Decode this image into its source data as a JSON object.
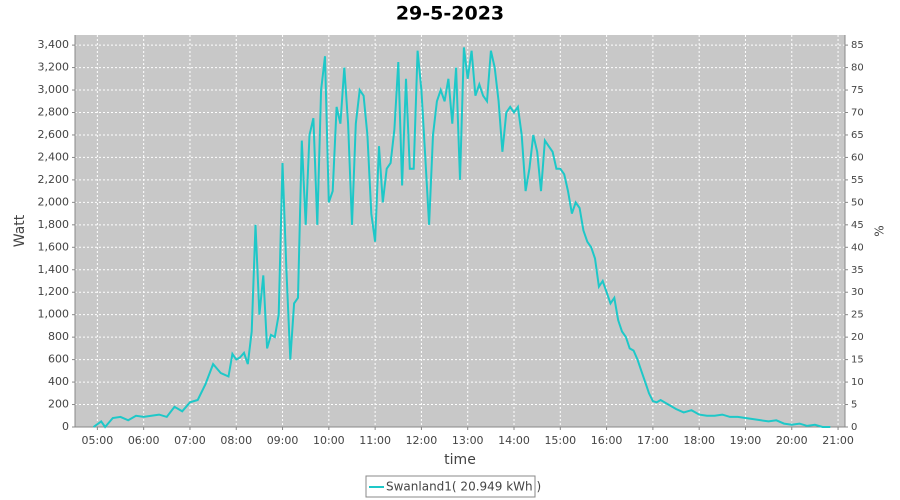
{
  "chart_data": {
    "type": "line",
    "title": "29-5-2023",
    "xlabel": "time",
    "ylabel": "Watt",
    "y2label": "%",
    "x": [
      "04:55",
      "05:05",
      "05:10",
      "05:20",
      "05:30",
      "05:40",
      "05:50",
      "06:00",
      "06:10",
      "06:20",
      "06:30",
      "06:40",
      "06:50",
      "07:00",
      "07:10",
      "07:20",
      "07:30",
      "07:40",
      "07:50",
      "07:55",
      "08:00",
      "08:05",
      "08:10",
      "08:15",
      "08:20",
      "08:25",
      "08:30",
      "08:35",
      "08:40",
      "08:45",
      "08:50",
      "08:55",
      "09:00",
      "09:05",
      "09:10",
      "09:15",
      "09:20",
      "09:25",
      "09:30",
      "09:35",
      "09:40",
      "09:45",
      "09:50",
      "09:55",
      "10:00",
      "10:05",
      "10:10",
      "10:15",
      "10:20",
      "10:25",
      "10:30",
      "10:35",
      "10:40",
      "10:45",
      "10:50",
      "10:55",
      "11:00",
      "11:05",
      "11:10",
      "11:15",
      "11:20",
      "11:25",
      "11:30",
      "11:35",
      "11:40",
      "11:45",
      "11:50",
      "11:55",
      "12:00",
      "12:05",
      "12:10",
      "12:15",
      "12:20",
      "12:25",
      "12:30",
      "12:35",
      "12:40",
      "12:45",
      "12:50",
      "12:55",
      "13:00",
      "13:05",
      "13:10",
      "13:15",
      "13:20",
      "13:25",
      "13:30",
      "13:35",
      "13:40",
      "13:45",
      "13:50",
      "13:55",
      "14:00",
      "14:05",
      "14:10",
      "14:15",
      "14:20",
      "14:25",
      "14:30",
      "14:35",
      "14:40",
      "14:45",
      "14:50",
      "14:55",
      "15:00",
      "15:05",
      "15:10",
      "15:15",
      "15:20",
      "15:25",
      "15:30",
      "15:35",
      "15:40",
      "15:45",
      "15:50",
      "15:55",
      "16:00",
      "16:05",
      "16:10",
      "16:15",
      "16:20",
      "16:25",
      "16:30",
      "16:35",
      "16:40",
      "16:45",
      "16:50",
      "16:55",
      "17:00",
      "17:05",
      "17:10",
      "17:20",
      "17:30",
      "17:40",
      "17:50",
      "18:00",
      "18:10",
      "18:20",
      "18:30",
      "18:40",
      "18:50",
      "19:00",
      "19:10",
      "19:20",
      "19:30",
      "19:40",
      "19:50",
      "20:00",
      "20:10",
      "20:20",
      "20:30",
      "20:40",
      "20:50"
    ],
    "series": [
      {
        "name": "Swanland1( 20.949 kWh )",
        "color": "#1ec8c8",
        "values": [
          0,
          50,
          0,
          80,
          90,
          60,
          100,
          90,
          100,
          110,
          90,
          180,
          140,
          220,
          240,
          380,
          560,
          480,
          450,
          650,
          600,
          620,
          660,
          560,
          850,
          1800,
          1000,
          1350,
          700,
          820,
          800,
          1000,
          2350,
          1400,
          600,
          1100,
          1150,
          2550,
          1800,
          2600,
          2750,
          1800,
          3000,
          3300,
          2000,
          2100,
          2850,
          2700,
          3200,
          2700,
          1800,
          2700,
          3000,
          2950,
          2600,
          1900,
          1650,
          2500,
          2000,
          2300,
          2350,
          2650,
          3250,
          2150,
          3100,
          2300,
          2300,
          3350,
          3000,
          2400,
          1800,
          2600,
          2900,
          3000,
          2900,
          3100,
          2700,
          3200,
          2200,
          3380,
          3100,
          3350,
          2950,
          3050,
          2950,
          2900,
          3350,
          3200,
          2900,
          2450,
          2800,
          2850,
          2800,
          2850,
          2600,
          2100,
          2300,
          2600,
          2450,
          2100,
          2550,
          2500,
          2450,
          2300,
          2300,
          2250,
          2100,
          1900,
          2000,
          1950,
          1750,
          1650,
          1600,
          1500,
          1250,
          1300,
          1200,
          1100,
          1150,
          950,
          850,
          800,
          700,
          680,
          600,
          500,
          400,
          300,
          230,
          220,
          240,
          200,
          160,
          130,
          150,
          110,
          100,
          100,
          110,
          90,
          90,
          80,
          70,
          60,
          50,
          60,
          30,
          20,
          30,
          10,
          20,
          0,
          0
        ]
      }
    ],
    "xlim": [
      "04:31",
      "21:09"
    ],
    "xticks": [
      "05:00",
      "06:00",
      "07:00",
      "08:00",
      "09:00",
      "10:00",
      "11:00",
      "12:00",
      "13:00",
      "14:00",
      "15:00",
      "16:00",
      "17:00",
      "18:00",
      "19:00",
      "20:00",
      "21:00"
    ],
    "ylim": [
      0,
      3490
    ],
    "yticks": [
      0,
      200,
      400,
      600,
      800,
      {
        "value": 1000,
        "label": "1,000"
      },
      {
        "value": 1200,
        "label": "1,200"
      },
      {
        "value": 1400,
        "label": "1,400"
      },
      {
        "value": 1600,
        "label": "1,600"
      },
      {
        "value": 1800,
        "label": "1,800"
      },
      {
        "value": 2000,
        "label": "2,000"
      },
      {
        "value": 2200,
        "label": "2,200"
      },
      {
        "value": 2400,
        "label": "2,400"
      },
      {
        "value": 2600,
        "label": "2,600"
      },
      {
        "value": 2800,
        "label": "2,800"
      },
      {
        "value": 3000,
        "label": "3,000"
      },
      {
        "value": 3200,
        "label": "3,200"
      },
      {
        "value": 3400,
        "label": "3,400"
      }
    ],
    "y2lim": [
      0,
      87.25
    ],
    "y2ticks": [
      0,
      5,
      10,
      15,
      20,
      25,
      30,
      35,
      40,
      45,
      50,
      55,
      60,
      65,
      70,
      75,
      80,
      85
    ],
    "grid": true,
    "legend": "bottom"
  }
}
